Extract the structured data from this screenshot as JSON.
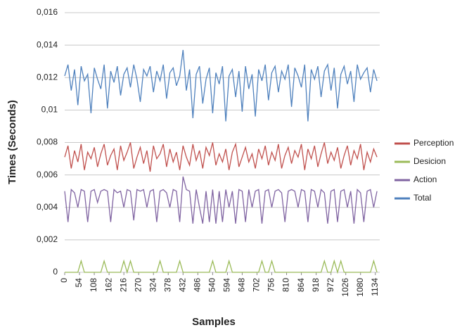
{
  "chart_data": {
    "type": "line",
    "xlabel": "Samples",
    "ylabel": "Times (Seconds)",
    "x": [
      0,
      12,
      24,
      36,
      48,
      60,
      72,
      84,
      96,
      108,
      120,
      132,
      144,
      156,
      168,
      180,
      192,
      204,
      216,
      228,
      240,
      252,
      264,
      276,
      288,
      300,
      312,
      324,
      336,
      348,
      360,
      372,
      384,
      396,
      408,
      420,
      432,
      444,
      456,
      468,
      480,
      492,
      504,
      516,
      528,
      540,
      552,
      564,
      576,
      588,
      600,
      612,
      624,
      636,
      648,
      660,
      672,
      684,
      696,
      708,
      720,
      732,
      744,
      756,
      768,
      780,
      792,
      804,
      816,
      828,
      840,
      852,
      864,
      876,
      888,
      900,
      912,
      924,
      936,
      948,
      960,
      972,
      984,
      996,
      1008,
      1020,
      1032,
      1044,
      1056,
      1068,
      1080,
      1092,
      1104,
      1116,
      1128,
      1140
    ],
    "series": [
      {
        "name": "Perception",
        "color": "#c0504d",
        "values": [
          0.0071,
          0.0078,
          0.0064,
          0.0075,
          0.0068,
          0.0079,
          0.0063,
          0.0074,
          0.007,
          0.0077,
          0.0065,
          0.0073,
          0.0079,
          0.0066,
          0.0072,
          0.0076,
          0.0063,
          0.0078,
          0.0069,
          0.0074,
          0.008,
          0.0064,
          0.0071,
          0.0077,
          0.0067,
          0.0075,
          0.0062,
          0.0078,
          0.007,
          0.0073,
          0.0079,
          0.0065,
          0.0076,
          0.0068,
          0.0074,
          0.0063,
          0.0078,
          0.0071,
          0.0066,
          0.0079,
          0.0069,
          0.0075,
          0.0064,
          0.0077,
          0.0072,
          0.008,
          0.0066,
          0.0073,
          0.0068,
          0.0076,
          0.0063,
          0.0074,
          0.0079,
          0.0065,
          0.0071,
          0.0077,
          0.0068,
          0.0073,
          0.0064,
          0.0076,
          0.007,
          0.0078,
          0.0066,
          0.0074,
          0.0069,
          0.0079,
          0.0064,
          0.0072,
          0.0077,
          0.0067,
          0.0075,
          0.0071,
          0.0079,
          0.0063,
          0.0076,
          0.007,
          0.0078,
          0.0065,
          0.0073,
          0.008,
          0.0067,
          0.0074,
          0.0069,
          0.0077,
          0.0064,
          0.0072,
          0.0078,
          0.0066,
          0.0075,
          0.007,
          0.0079,
          0.0063,
          0.0074,
          0.0068,
          0.0076,
          0.0071
        ]
      },
      {
        "name": "Desicion",
        "color": "#9bbb59",
        "values": [
          0,
          0,
          0,
          0,
          0,
          0.0007,
          0,
          0,
          0,
          0,
          0,
          0,
          0.0007,
          0,
          0,
          0,
          0,
          0,
          0.0007,
          0,
          0.0007,
          0,
          0,
          0,
          0,
          0,
          0,
          0,
          0,
          0.0007,
          0,
          0,
          0,
          0,
          0,
          0.0007,
          0,
          0,
          0,
          0,
          0,
          0,
          0,
          0,
          0,
          0.0007,
          0,
          0,
          0,
          0,
          0.0007,
          0,
          0,
          0,
          0,
          0,
          0,
          0,
          0,
          0,
          0.0007,
          0,
          0,
          0.0007,
          0,
          0,
          0,
          0,
          0,
          0,
          0,
          0,
          0,
          0,
          0,
          0,
          0,
          0,
          0,
          0.0007,
          0,
          0,
          0.0007,
          0,
          0.0007,
          0,
          0,
          0,
          0,
          0,
          0,
          0,
          0,
          0,
          0.0007,
          0
        ]
      },
      {
        "name": "Action",
        "color": "#8064a2",
        "values": [
          0.005,
          0.0031,
          0.0051,
          0.0049,
          0.004,
          0.0051,
          0.005,
          0.0031,
          0.005,
          0.0051,
          0.0043,
          0.005,
          0.0051,
          0.005,
          0.0031,
          0.0051,
          0.0049,
          0.005,
          0.004,
          0.0051,
          0.005,
          0.0032,
          0.0051,
          0.005,
          0.0051,
          0.004,
          0.005,
          0.0051,
          0.0031,
          0.005,
          0.0051,
          0.0049,
          0.004,
          0.0051,
          0.005,
          0.0031,
          0.0059,
          0.0051,
          0.005,
          0.003,
          0.0051,
          0.004,
          0.003,
          0.005,
          0.0031,
          0.0051,
          0.003,
          0.005,
          0.0031,
          0.0051,
          0.004,
          0.005,
          0.003,
          0.0051,
          0.005,
          0.0031,
          0.0051,
          0.004,
          0.005,
          0.0051,
          0.003,
          0.005,
          0.0051,
          0.004,
          0.005,
          0.0051,
          0.0049,
          0.0031,
          0.005,
          0.0051,
          0.005,
          0.004,
          0.0051,
          0.005,
          0.0031,
          0.0051,
          0.005,
          0.004,
          0.0051,
          0.0049,
          0.003,
          0.005,
          0.0051,
          0.0031,
          0.005,
          0.0051,
          0.004,
          0.005,
          0.003,
          0.0051,
          0.0049,
          0.0031,
          0.005,
          0.0051,
          0.004,
          0.005
        ]
      },
      {
        "name": "Total",
        "color": "#4f81bd",
        "values": [
          0.0121,
          0.0128,
          0.0112,
          0.0125,
          0.0103,
          0.0127,
          0.0118,
          0.0122,
          0.0098,
          0.0126,
          0.0119,
          0.0113,
          0.0128,
          0.0101,
          0.0124,
          0.0117,
          0.0127,
          0.0109,
          0.0122,
          0.0126,
          0.0114,
          0.0128,
          0.0119,
          0.0105,
          0.0125,
          0.0121,
          0.0127,
          0.0111,
          0.0124,
          0.0118,
          0.0128,
          0.0107,
          0.0123,
          0.0126,
          0.0115,
          0.0121,
          0.0137,
          0.0112,
          0.0125,
          0.0095,
          0.0122,
          0.0127,
          0.0104,
          0.0119,
          0.0126,
          0.0098,
          0.0123,
          0.0116,
          0.0127,
          0.0093,
          0.0121,
          0.0125,
          0.0108,
          0.0124,
          0.0099,
          0.0127,
          0.0113,
          0.0122,
          0.0096,
          0.0125,
          0.0118,
          0.0128,
          0.0106,
          0.0123,
          0.0127,
          0.0111,
          0.0124,
          0.0119,
          0.0128,
          0.0102,
          0.0126,
          0.0121,
          0.0114,
          0.0128,
          0.0093,
          0.0125,
          0.0119,
          0.0127,
          0.0108,
          0.0124,
          0.0128,
          0.0112,
          0.0126,
          0.0101,
          0.0122,
          0.0127,
          0.0116,
          0.0124,
          0.0105,
          0.0128,
          0.0119,
          0.0123,
          0.0126,
          0.0111,
          0.0125,
          0.0118
        ]
      }
    ],
    "xlim": [
      0,
      1150
    ],
    "xticks": [
      0,
      54,
      108,
      162,
      216,
      270,
      324,
      378,
      432,
      486,
      540,
      594,
      648,
      702,
      756,
      810,
      864,
      918,
      972,
      1026,
      1080,
      1134
    ],
    "ylim": [
      0,
      0.016
    ],
    "yticks": [
      0,
      {
        "value": 0.002,
        "label": "0,002"
      },
      {
        "value": 0.004,
        "label": "0,004"
      },
      {
        "value": 0.006,
        "label": "0,006"
      },
      {
        "value": 0.008,
        "label": "0,008"
      },
      {
        "value": 0.01,
        "label": "0,01"
      },
      {
        "value": 0.012,
        "label": "0,012"
      },
      {
        "value": 0.014,
        "label": "0,014"
      },
      {
        "value": 0.016,
        "label": "0,016"
      }
    ],
    "grid": true,
    "legend": "right"
  }
}
